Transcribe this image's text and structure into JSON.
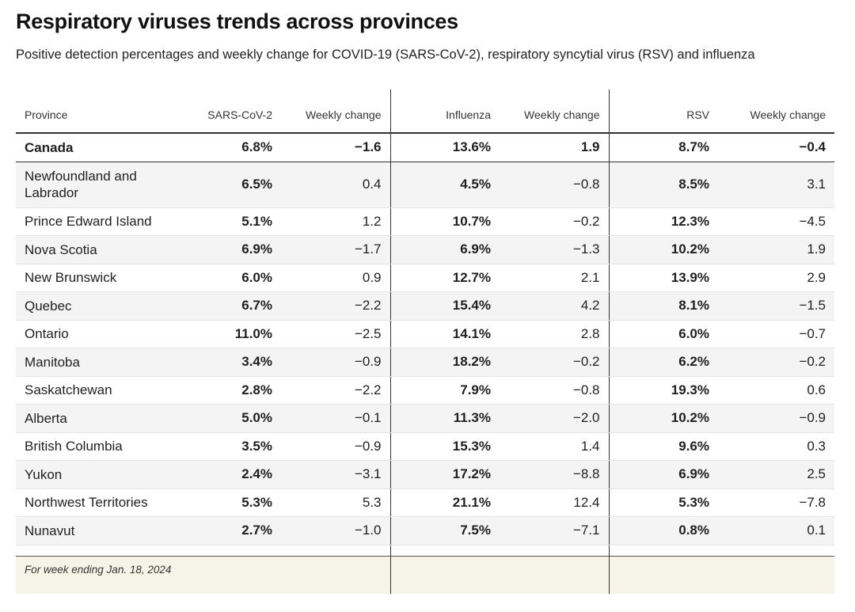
{
  "title": "Respiratory viruses trends across provinces",
  "subtitle": "Positive detection percentages and weekly change for COVID-19 (SARS-CoV-2), respiratory syncytial virus (RSV) and influenza",
  "footnote": "For week ending Jan. 18, 2024",
  "chart_data": {
    "type": "table",
    "title": "Respiratory viruses trends across provinces",
    "subtitle": "Positive detection percentages and weekly change for COVID-19 (SARS-CoV-2), respiratory syncytial virus (RSV) and influenza",
    "columns": [
      "Province",
      "SARS-CoV-2",
      "Weekly change",
      "Influenza",
      "Weekly change",
      "RSV",
      "Weekly change"
    ],
    "rows": [
      [
        "Canada",
        "6.8%",
        "−1.6",
        "13.6%",
        "1.9",
        "8.7%",
        "−0.4"
      ],
      [
        "Newfoundland and Labrador",
        "6.5%",
        "0.4",
        "4.5%",
        "−0.8",
        "8.5%",
        "3.1"
      ],
      [
        "Prince Edward Island",
        "5.1%",
        "1.2",
        "10.7%",
        "−0.2",
        "12.3%",
        "−4.5"
      ],
      [
        "Nova Scotia",
        "6.9%",
        "−1.7",
        "6.9%",
        "−1.3",
        "10.2%",
        "1.9"
      ],
      [
        "New Brunswick",
        "6.0%",
        "0.9",
        "12.7%",
        "2.1",
        "13.9%",
        "2.9"
      ],
      [
        "Quebec",
        "6.7%",
        "−2.2",
        "15.4%",
        "4.2",
        "8.1%",
        "−1.5"
      ],
      [
        "Ontario",
        "11.0%",
        "−2.5",
        "14.1%",
        "2.8",
        "6.0%",
        "−0.7"
      ],
      [
        "Manitoba",
        "3.4%",
        "−0.9",
        "18.2%",
        "−0.2",
        "6.2%",
        "−0.2"
      ],
      [
        "Saskatchewan",
        "2.8%",
        "−2.2",
        "7.9%",
        "−0.8",
        "19.3%",
        "0.6"
      ],
      [
        "Alberta",
        "5.0%",
        "−0.1",
        "11.3%",
        "−2.0",
        "10.2%",
        "−0.9"
      ],
      [
        "British Columbia",
        "3.5%",
        "−0.9",
        "15.3%",
        "1.4",
        "9.6%",
        "0.3"
      ],
      [
        "Yukon",
        "2.4%",
        "−3.1",
        "17.2%",
        "−8.8",
        "6.9%",
        "2.5"
      ],
      [
        "Northwest Territories",
        "5.3%",
        "5.3",
        "21.1%",
        "12.4",
        "5.3%",
        "−7.8"
      ],
      [
        "Nunavut",
        "2.7%",
        "−1.0",
        "7.5%",
        "−7.1",
        "0.8%",
        "0.1"
      ]
    ]
  }
}
